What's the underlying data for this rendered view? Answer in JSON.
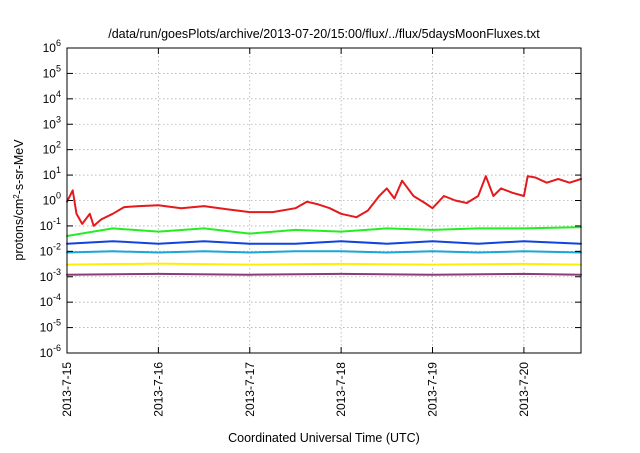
{
  "chart_data": {
    "type": "line",
    "title": "/data/run/goesPlots/archive/2013-07-20/15:00/flux/../flux/5daysMoonFluxes.txt",
    "xlabel": "Coordinated Universal Time (UTC)",
    "ylabel": {
      "prefix": "protons/cm",
      "sup": "2",
      "suffix": "-s-sr-MeV"
    },
    "y_scale": "log",
    "ylim": [
      1e-06,
      1000000.0
    ],
    "y_ticks": [
      {
        "value": 1e-06,
        "base": "10",
        "exp": "-6"
      },
      {
        "value": 1e-05,
        "base": "10",
        "exp": "-5"
      },
      {
        "value": 0.0001,
        "base": "10",
        "exp": "-4"
      },
      {
        "value": 0.001,
        "base": "10",
        "exp": "-3"
      },
      {
        "value": 0.01,
        "base": "10",
        "exp": "-2"
      },
      {
        "value": 0.1,
        "base": "10",
        "exp": "-1"
      },
      {
        "value": 1,
        "base": "10",
        "exp": "0"
      },
      {
        "value": 10,
        "base": "10",
        "exp": "1"
      },
      {
        "value": 100,
        "base": "10",
        "exp": "2"
      },
      {
        "value": 1000,
        "base": "10",
        "exp": "3"
      },
      {
        "value": 10000,
        "base": "10",
        "exp": "4"
      },
      {
        "value": 100000,
        "base": "10",
        "exp": "5"
      },
      {
        "value": 1000000,
        "base": "10",
        "exp": "6"
      }
    ],
    "x_range": [
      "2013-07-15T00:00",
      "2013-07-20T15:00"
    ],
    "x_ticks": [
      {
        "value": "2013-07-15T00:00",
        "label": "2013-7-15"
      },
      {
        "value": "2013-07-16T00:00",
        "label": "2013-7-16"
      },
      {
        "value": "2013-07-17T00:00",
        "label": "2013-7-17"
      },
      {
        "value": "2013-07-18T00:00",
        "label": "2013-7-18"
      },
      {
        "value": "2013-07-19T00:00",
        "label": "2013-7-19"
      },
      {
        "value": "2013-07-20T00:00",
        "label": "2013-7-20"
      }
    ],
    "grid": true,
    "legend": "none",
    "series": [
      {
        "color": "#e41a1c",
        "points": [
          [
            "2013-07-15T00:00",
            0.9
          ],
          [
            "2013-07-15T01:30",
            2.5
          ],
          [
            "2013-07-15T02:30",
            0.3
          ],
          [
            "2013-07-15T04:00",
            0.12
          ],
          [
            "2013-07-15T06:00",
            0.3
          ],
          [
            "2013-07-15T07:00",
            0.1
          ],
          [
            "2013-07-15T09:00",
            0.18
          ],
          [
            "2013-07-15T12:00",
            0.3
          ],
          [
            "2013-07-15T15:00",
            0.55
          ],
          [
            "2013-07-15T19:00",
            0.6
          ],
          [
            "2013-07-16T00:00",
            0.65
          ],
          [
            "2013-07-16T06:00",
            0.5
          ],
          [
            "2013-07-16T12:00",
            0.6
          ],
          [
            "2013-07-16T18:00",
            0.45
          ],
          [
            "2013-07-17T00:00",
            0.35
          ],
          [
            "2013-07-17T06:00",
            0.35
          ],
          [
            "2013-07-17T12:00",
            0.5
          ],
          [
            "2013-07-17T15:00",
            0.9
          ],
          [
            "2013-07-17T18:00",
            0.7
          ],
          [
            "2013-07-17T21:00",
            0.5
          ],
          [
            "2013-07-18T00:00",
            0.3
          ],
          [
            "2013-07-18T04:00",
            0.22
          ],
          [
            "2013-07-18T07:00",
            0.4
          ],
          [
            "2013-07-18T10:00",
            1.5
          ],
          [
            "2013-07-18T12:00",
            3
          ],
          [
            "2013-07-18T14:00",
            1.2
          ],
          [
            "2013-07-18T16:00",
            6
          ],
          [
            "2013-07-18T19:00",
            1.5
          ],
          [
            "2013-07-18T22:00",
            0.8
          ],
          [
            "2013-07-19T00:00",
            0.5
          ],
          [
            "2013-07-19T03:00",
            1.5
          ],
          [
            "2013-07-19T06:00",
            1.0
          ],
          [
            "2013-07-19T09:00",
            0.8
          ],
          [
            "2013-07-19T12:00",
            1.5
          ],
          [
            "2013-07-19T14:00",
            9
          ],
          [
            "2013-07-19T16:00",
            1.5
          ],
          [
            "2013-07-19T18:00",
            3
          ],
          [
            "2013-07-19T21:00",
            2
          ],
          [
            "2013-07-20T00:00",
            1.5
          ],
          [
            "2013-07-20T01:00",
            9
          ],
          [
            "2013-07-20T03:00",
            8
          ],
          [
            "2013-07-20T06:00",
            5
          ],
          [
            "2013-07-20T09:00",
            7
          ],
          [
            "2013-07-20T12:00",
            5
          ],
          [
            "2013-07-20T15:00",
            7
          ]
        ]
      },
      {
        "color": "#22ee22",
        "points": [
          [
            "2013-07-15T00:00",
            0.04
          ],
          [
            "2013-07-15T12:00",
            0.08
          ],
          [
            "2013-07-16T00:00",
            0.06
          ],
          [
            "2013-07-16T12:00",
            0.08
          ],
          [
            "2013-07-17T00:00",
            0.05
          ],
          [
            "2013-07-17T12:00",
            0.07
          ],
          [
            "2013-07-18T00:00",
            0.06
          ],
          [
            "2013-07-18T12:00",
            0.08
          ],
          [
            "2013-07-19T00:00",
            0.07
          ],
          [
            "2013-07-19T12:00",
            0.08
          ],
          [
            "2013-07-20T00:00",
            0.08
          ],
          [
            "2013-07-20T15:00",
            0.09
          ]
        ]
      },
      {
        "color": "#1144dd",
        "points": [
          [
            "2013-07-15T00:00",
            0.02
          ],
          [
            "2013-07-15T12:00",
            0.025
          ],
          [
            "2013-07-16T00:00",
            0.02
          ],
          [
            "2013-07-16T12:00",
            0.025
          ],
          [
            "2013-07-17T00:00",
            0.02
          ],
          [
            "2013-07-17T12:00",
            0.02
          ],
          [
            "2013-07-18T00:00",
            0.025
          ],
          [
            "2013-07-18T12:00",
            0.02
          ],
          [
            "2013-07-19T00:00",
            0.025
          ],
          [
            "2013-07-19T12:00",
            0.02
          ],
          [
            "2013-07-20T00:00",
            0.025
          ],
          [
            "2013-07-20T15:00",
            0.02
          ]
        ]
      },
      {
        "color": "#1aa6d6",
        "points": [
          [
            "2013-07-15T00:00",
            0.009
          ],
          [
            "2013-07-15T12:00",
            0.01
          ],
          [
            "2013-07-16T00:00",
            0.009
          ],
          [
            "2013-07-16T12:00",
            0.01
          ],
          [
            "2013-07-17T00:00",
            0.009
          ],
          [
            "2013-07-17T12:00",
            0.01
          ],
          [
            "2013-07-18T00:00",
            0.01
          ],
          [
            "2013-07-18T12:00",
            0.009
          ],
          [
            "2013-07-19T00:00",
            0.01
          ],
          [
            "2013-07-19T12:00",
            0.009
          ],
          [
            "2013-07-20T00:00",
            0.01
          ],
          [
            "2013-07-20T15:00",
            0.009
          ]
        ]
      },
      {
        "color": "#ffee00",
        "points": [
          [
            "2013-07-15T00:00",
            0.003
          ],
          [
            "2013-07-16T00:00",
            0.0033
          ],
          [
            "2013-07-17T00:00",
            0.003
          ],
          [
            "2013-07-18T00:00",
            0.0032
          ],
          [
            "2013-07-19T00:00",
            0.003
          ],
          [
            "2013-07-20T00:00",
            0.0032
          ],
          [
            "2013-07-20T15:00",
            0.003
          ]
        ]
      },
      {
        "color": "#8b3a7a",
        "points": [
          [
            "2013-07-15T00:00",
            0.0012
          ],
          [
            "2013-07-16T00:00",
            0.0013
          ],
          [
            "2013-07-17T00:00",
            0.0012
          ],
          [
            "2013-07-18T00:00",
            0.0013
          ],
          [
            "2013-07-19T00:00",
            0.0012
          ],
          [
            "2013-07-20T00:00",
            0.0013
          ],
          [
            "2013-07-20T15:00",
            0.0012
          ]
        ]
      }
    ]
  }
}
